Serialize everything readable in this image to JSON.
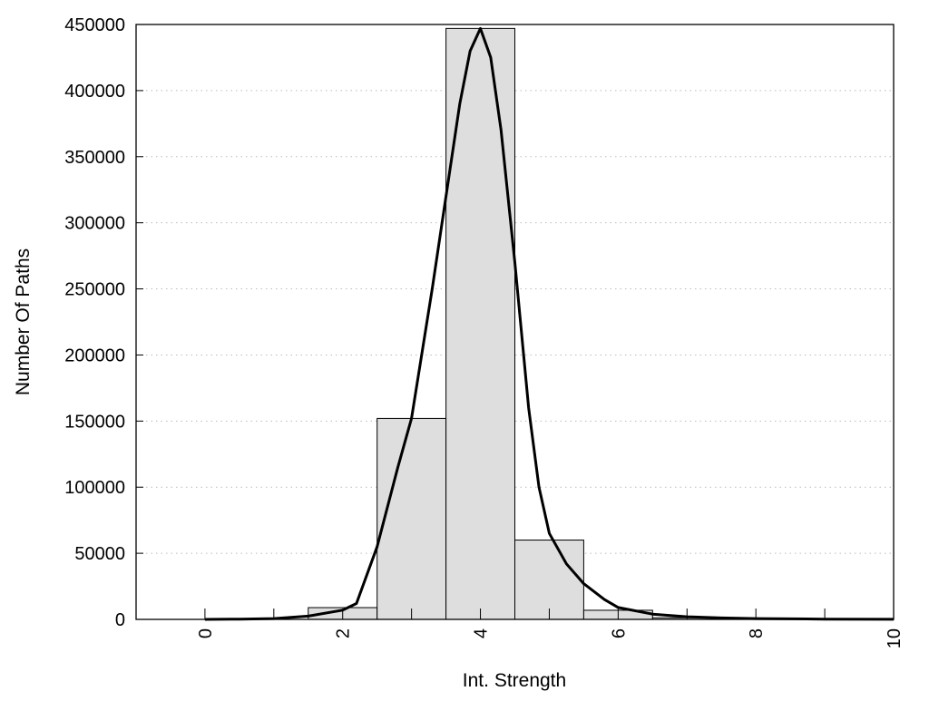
{
  "chart_data": {
    "type": "bar",
    "title": "",
    "xlabel": "Int. Strength",
    "ylabel": "Number Of Paths",
    "xlim": [
      -1,
      10
    ],
    "ylim": [
      0,
      450000
    ],
    "grid": "horizontal dotted",
    "legend": "none",
    "x_ticks": [
      "0",
      "2",
      "4",
      "6",
      "8",
      "10"
    ],
    "y_ticks": [
      "0",
      "50000",
      "100000",
      "150000",
      "200000",
      "250000",
      "300000",
      "350000",
      "400000",
      "450000"
    ],
    "bars": {
      "x": [
        0,
        1,
        2,
        3,
        4,
        5,
        6,
        7,
        8,
        9
      ],
      "values": [
        0,
        0,
        8900,
        152000,
        447000,
        60000,
        6900,
        1200,
        300,
        100
      ],
      "width": 1,
      "color": "#dedede"
    },
    "fit_curve": {
      "x": [
        0,
        0.5,
        1,
        1.5,
        2,
        2.2,
        2.5,
        2.8,
        3,
        3.3,
        3.5,
        3.7,
        3.85,
        4,
        4.15,
        4.3,
        4.5,
        4.7,
        4.85,
        5,
        5.25,
        5.5,
        5.8,
        6,
        6.5,
        7,
        7.5,
        8,
        9,
        10
      ],
      "values": [
        0,
        200,
        600,
        2500,
        7000,
        12000,
        55000,
        115000,
        152000,
        250000,
        320000,
        390000,
        430000,
        447000,
        425000,
        370000,
        270000,
        160000,
        100000,
        65000,
        42000,
        27000,
        15000,
        9000,
        4000,
        2000,
        1100,
        600,
        200,
        50
      ],
      "color": "#000000"
    }
  }
}
